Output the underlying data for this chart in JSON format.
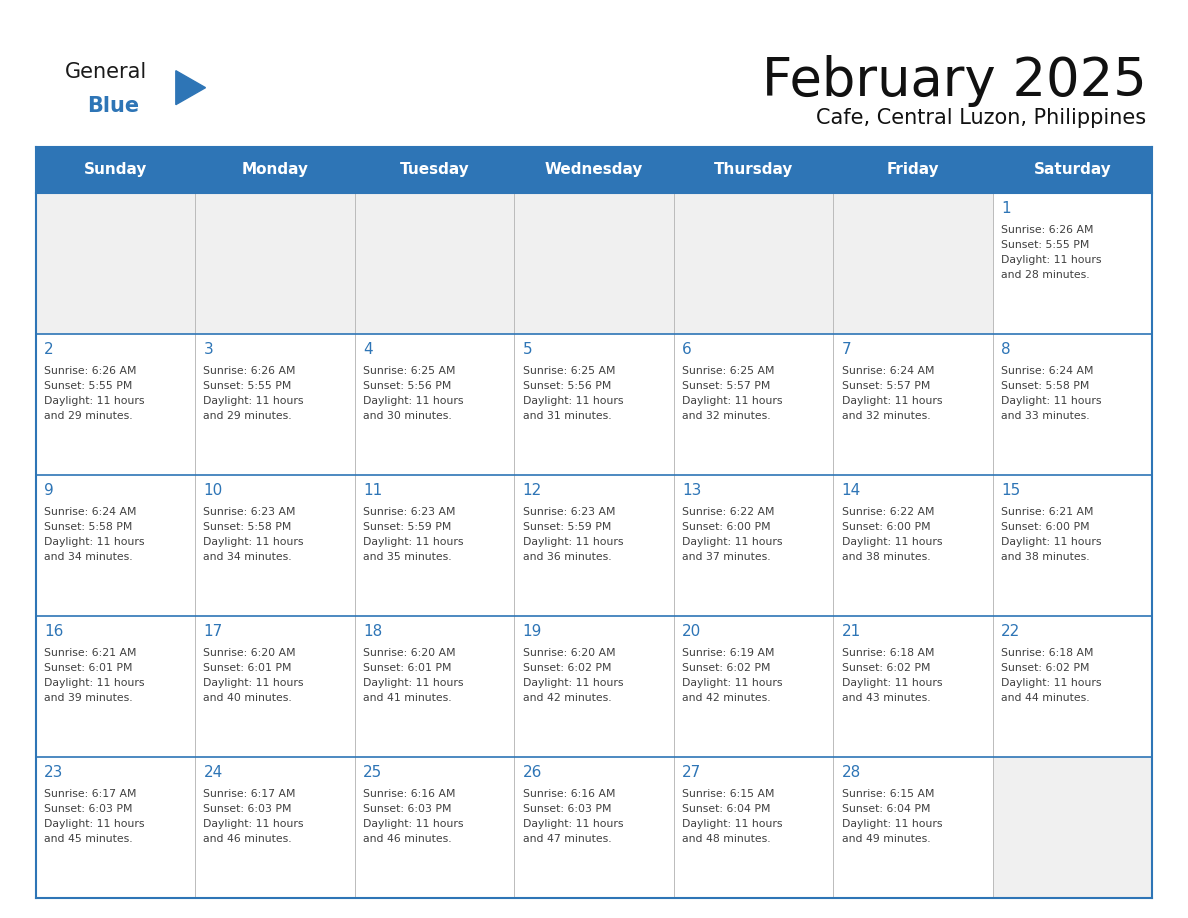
{
  "title": "February 2025",
  "subtitle": "Cafe, Central Luzon, Philippines",
  "header_bg": "#2E75B6",
  "header_text_color": "#FFFFFF",
  "days_of_week": [
    "Sunday",
    "Monday",
    "Tuesday",
    "Wednesday",
    "Thursday",
    "Friday",
    "Saturday"
  ],
  "cell_bg": "#FFFFFF",
  "empty_cell_bg": "#F0F0F0",
  "day_num_color": "#2E75B6",
  "body_text_color": "#404040",
  "background_color": "#FFFFFF",
  "border_color": "#2E75B6",
  "vert_line_color": "#BBBBBB",
  "calendar_data": [
    [
      null,
      null,
      null,
      null,
      null,
      null,
      {
        "day": 1,
        "sunrise": "6:26 AM",
        "sunset": "5:55 PM",
        "daylight_hours": 11,
        "daylight_minutes": 28
      }
    ],
    [
      {
        "day": 2,
        "sunrise": "6:26 AM",
        "sunset": "5:55 PM",
        "daylight_hours": 11,
        "daylight_minutes": 29
      },
      {
        "day": 3,
        "sunrise": "6:26 AM",
        "sunset": "5:55 PM",
        "daylight_hours": 11,
        "daylight_minutes": 29
      },
      {
        "day": 4,
        "sunrise": "6:25 AM",
        "sunset": "5:56 PM",
        "daylight_hours": 11,
        "daylight_minutes": 30
      },
      {
        "day": 5,
        "sunrise": "6:25 AM",
        "sunset": "5:56 PM",
        "daylight_hours": 11,
        "daylight_minutes": 31
      },
      {
        "day": 6,
        "sunrise": "6:25 AM",
        "sunset": "5:57 PM",
        "daylight_hours": 11,
        "daylight_minutes": 32
      },
      {
        "day": 7,
        "sunrise": "6:24 AM",
        "sunset": "5:57 PM",
        "daylight_hours": 11,
        "daylight_minutes": 32
      },
      {
        "day": 8,
        "sunrise": "6:24 AM",
        "sunset": "5:58 PM",
        "daylight_hours": 11,
        "daylight_minutes": 33
      }
    ],
    [
      {
        "day": 9,
        "sunrise": "6:24 AM",
        "sunset": "5:58 PM",
        "daylight_hours": 11,
        "daylight_minutes": 34
      },
      {
        "day": 10,
        "sunrise": "6:23 AM",
        "sunset": "5:58 PM",
        "daylight_hours": 11,
        "daylight_minutes": 34
      },
      {
        "day": 11,
        "sunrise": "6:23 AM",
        "sunset": "5:59 PM",
        "daylight_hours": 11,
        "daylight_minutes": 35
      },
      {
        "day": 12,
        "sunrise": "6:23 AM",
        "sunset": "5:59 PM",
        "daylight_hours": 11,
        "daylight_minutes": 36
      },
      {
        "day": 13,
        "sunrise": "6:22 AM",
        "sunset": "6:00 PM",
        "daylight_hours": 11,
        "daylight_minutes": 37
      },
      {
        "day": 14,
        "sunrise": "6:22 AM",
        "sunset": "6:00 PM",
        "daylight_hours": 11,
        "daylight_minutes": 38
      },
      {
        "day": 15,
        "sunrise": "6:21 AM",
        "sunset": "6:00 PM",
        "daylight_hours": 11,
        "daylight_minutes": 38
      }
    ],
    [
      {
        "day": 16,
        "sunrise": "6:21 AM",
        "sunset": "6:01 PM",
        "daylight_hours": 11,
        "daylight_minutes": 39
      },
      {
        "day": 17,
        "sunrise": "6:20 AM",
        "sunset": "6:01 PM",
        "daylight_hours": 11,
        "daylight_minutes": 40
      },
      {
        "day": 18,
        "sunrise": "6:20 AM",
        "sunset": "6:01 PM",
        "daylight_hours": 11,
        "daylight_minutes": 41
      },
      {
        "day": 19,
        "sunrise": "6:20 AM",
        "sunset": "6:02 PM",
        "daylight_hours": 11,
        "daylight_minutes": 42
      },
      {
        "day": 20,
        "sunrise": "6:19 AM",
        "sunset": "6:02 PM",
        "daylight_hours": 11,
        "daylight_minutes": 42
      },
      {
        "day": 21,
        "sunrise": "6:18 AM",
        "sunset": "6:02 PM",
        "daylight_hours": 11,
        "daylight_minutes": 43
      },
      {
        "day": 22,
        "sunrise": "6:18 AM",
        "sunset": "6:02 PM",
        "daylight_hours": 11,
        "daylight_minutes": 44
      }
    ],
    [
      {
        "day": 23,
        "sunrise": "6:17 AM",
        "sunset": "6:03 PM",
        "daylight_hours": 11,
        "daylight_minutes": 45
      },
      {
        "day": 24,
        "sunrise": "6:17 AM",
        "sunset": "6:03 PM",
        "daylight_hours": 11,
        "daylight_minutes": 46
      },
      {
        "day": 25,
        "sunrise": "6:16 AM",
        "sunset": "6:03 PM",
        "daylight_hours": 11,
        "daylight_minutes": 46
      },
      {
        "day": 26,
        "sunrise": "6:16 AM",
        "sunset": "6:03 PM",
        "daylight_hours": 11,
        "daylight_minutes": 47
      },
      {
        "day": 27,
        "sunrise": "6:15 AM",
        "sunset": "6:04 PM",
        "daylight_hours": 11,
        "daylight_minutes": 48
      },
      {
        "day": 28,
        "sunrise": "6:15 AM",
        "sunset": "6:04 PM",
        "daylight_hours": 11,
        "daylight_minutes": 49
      },
      null
    ]
  ],
  "logo_general_color": "#1a1a1a",
  "logo_blue_color": "#2E75B6",
  "title_fontsize": 38,
  "subtitle_fontsize": 15,
  "header_fontsize": 11,
  "day_num_fontsize": 11,
  "cell_text_fontsize": 7.8
}
